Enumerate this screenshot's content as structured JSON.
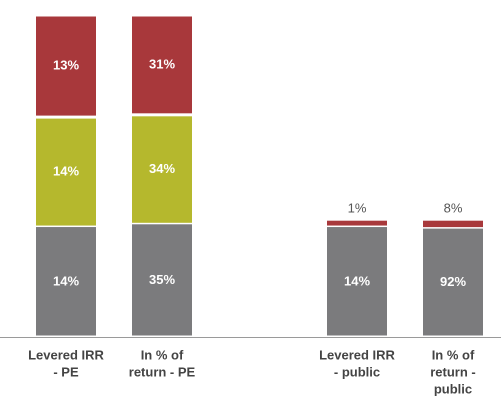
{
  "chart_data": {
    "type": "stacked_bar",
    "categories": [
      [
        "Levered IRR",
        "- PE"
      ],
      [
        "In % of",
        "return - PE"
      ],
      [
        "Levered IRR",
        "- public"
      ],
      [
        "In % of",
        "return -",
        "public"
      ]
    ],
    "series": [
      {
        "color": "#7b7b7d",
        "values": [
          14,
          35,
          14,
          92
        ],
        "value_labels": [
          "14%",
          "35%",
          "14%",
          "92%"
        ]
      },
      {
        "color": "#b5b82d",
        "values": [
          14,
          34,
          null,
          null
        ],
        "value_labels": [
          "14%",
          "34%",
          null,
          null
        ]
      },
      {
        "color": "#a8383b",
        "values": [
          13,
          31,
          1,
          8
        ],
        "value_labels": [
          "13%",
          "31%",
          "1%",
          "8%"
        ]
      }
    ]
  }
}
